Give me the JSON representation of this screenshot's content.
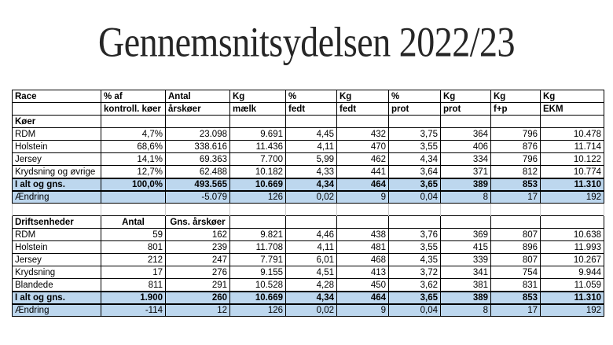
{
  "title": "Gennemsnitsydelsen 2022/23",
  "colors": {
    "highlight_row": "#BDD7EE",
    "border": "#000000",
    "title_text": "#262626"
  },
  "table": {
    "columns": [
      {
        "line1": "Race",
        "line2": ""
      },
      {
        "line1": "% af",
        "line2": "kontroll. køer"
      },
      {
        "line1": "Antal",
        "line2": "årskøer"
      },
      {
        "line1": "Kg",
        "line2": "mælk"
      },
      {
        "line1": "%",
        "line2": "fedt"
      },
      {
        "line1": "Kg",
        "line2": "fedt"
      },
      {
        "line1": "%",
        "line2": "prot"
      },
      {
        "line1": "Kg",
        "line2": "prot"
      },
      {
        "line1": "Kg",
        "line2": "f+p"
      },
      {
        "line1": "Kg",
        "line2": "EKM"
      }
    ],
    "rows": [
      {
        "kind": "section",
        "label": "Køer",
        "cells": [
          "",
          "",
          "",
          "",
          "",
          "",
          "",
          "",
          ""
        ]
      },
      {
        "kind": "data",
        "label": "RDM",
        "cells": [
          "4,7%",
          "23.098",
          "9.691",
          "4,45",
          "432",
          "3,75",
          "364",
          "796",
          "10.478"
        ]
      },
      {
        "kind": "data",
        "label": "Holstein",
        "cells": [
          "68,6%",
          "338.616",
          "11.436",
          "4,11",
          "470",
          "3,55",
          "406",
          "876",
          "11.714"
        ]
      },
      {
        "kind": "data",
        "label": "Jersey",
        "cells": [
          "14,1%",
          "69.363",
          "7.700",
          "5,99",
          "462",
          "4,34",
          "334",
          "796",
          "10.122"
        ]
      },
      {
        "kind": "data",
        "label": "Krydsning og øvrige",
        "cells": [
          "12,7%",
          "62.488",
          "10.182",
          "4,33",
          "441",
          "3,64",
          "371",
          "812",
          "10.774"
        ]
      },
      {
        "kind": "total",
        "label": "I alt og gns.",
        "cells": [
          "100,0%",
          "493.565",
          "10.669",
          "4,34",
          "464",
          "3,65",
          "389",
          "853",
          "11.310"
        ]
      },
      {
        "kind": "change",
        "label": "Ændring",
        "cells": [
          "",
          "-5.079",
          "126",
          "0,02",
          "9",
          "0,04",
          "8",
          "17",
          "192"
        ]
      },
      {
        "kind": "spacer",
        "label": "",
        "cells": [
          "",
          "",
          "",
          "",
          "",
          "",
          "",
          "",
          ""
        ]
      },
      {
        "kind": "subheader",
        "label": "Driftsenheder",
        "cells": [
          "Antal",
          "Gns. årskøer",
          "",
          "",
          "",
          "",
          "",
          "",
          ""
        ]
      },
      {
        "kind": "data",
        "label": "RDM",
        "cells": [
          "59",
          "162",
          "9.821",
          "4,46",
          "438",
          "3,76",
          "369",
          "807",
          "10.638"
        ]
      },
      {
        "kind": "data",
        "label": "Holstein",
        "cells": [
          "801",
          "239",
          "11.708",
          "4,11",
          "481",
          "3,55",
          "415",
          "896",
          "11.993"
        ]
      },
      {
        "kind": "data",
        "label": "Jersey",
        "cells": [
          "212",
          "247",
          "7.791",
          "6,01",
          "468",
          "4,35",
          "339",
          "807",
          "10.267"
        ]
      },
      {
        "kind": "data",
        "label": "Krydsning",
        "cells": [
          "17",
          "276",
          "9.155",
          "4,51",
          "413",
          "3,72",
          "341",
          "754",
          "9.944"
        ]
      },
      {
        "kind": "data",
        "label": "Blandede",
        "cells": [
          "811",
          "291",
          "10.528",
          "4,28",
          "450",
          "3,62",
          "381",
          "831",
          "11.059"
        ]
      },
      {
        "kind": "total",
        "label": "I alt og gns.",
        "cells": [
          "1.900",
          "260",
          "10.669",
          "4,34",
          "464",
          "3,65",
          "389",
          "853",
          "11.310"
        ]
      },
      {
        "kind": "change",
        "label": "Ændring",
        "cells": [
          "-114",
          "12",
          "126",
          "0,02",
          "9",
          "0,04",
          "8",
          "17",
          "192"
        ]
      }
    ]
  }
}
